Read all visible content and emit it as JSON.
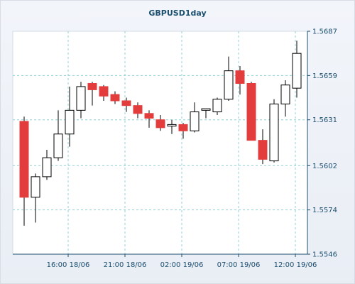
{
  "chart_data": {
    "type": "candlestick",
    "title": "GBPUSD1day",
    "xlabel": "",
    "ylabel": "",
    "ylim": [
      1.5546,
      1.5687
    ],
    "y_ticks": [
      "1.5687",
      "1.5659",
      "1.5631",
      "1.5602",
      "1.5574",
      "1.5546"
    ],
    "x_ticks": [
      {
        "label": "16:00 18/06",
        "at_candle": 4
      },
      {
        "label": "21:00 18/06",
        "at_candle": 9
      },
      {
        "label": "02:00 19/06",
        "at_candle": 14
      },
      {
        "label": "07:00 19/06",
        "at_candle": 19
      },
      {
        "label": "12:00 19/06",
        "at_candle": 24
      }
    ],
    "grid": true,
    "legend": "none",
    "colors": {
      "bull_fill": "#ffffff",
      "bear_fill": "#e23c3c",
      "wick": "#000000",
      "grid": "#8fd0d4",
      "axis_text": "#1c4e6e"
    },
    "candles": [
      {
        "open": 1.563,
        "high": 1.5633,
        "low": 1.5564,
        "close": 1.5582
      },
      {
        "open": 1.5582,
        "high": 1.5597,
        "low": 1.5566,
        "close": 1.5595
      },
      {
        "open": 1.5595,
        "high": 1.5612,
        "low": 1.5593,
        "close": 1.5607
      },
      {
        "open": 1.5607,
        "high": 1.5637,
        "low": 1.5605,
        "close": 1.5622
      },
      {
        "open": 1.5622,
        "high": 1.5652,
        "low": 1.5614,
        "close": 1.5637
      },
      {
        "open": 1.5637,
        "high": 1.5655,
        "low": 1.5632,
        "close": 1.5652
      },
      {
        "open": 1.5654,
        "high": 1.5655,
        "low": 1.564,
        "close": 1.565
      },
      {
        "open": 1.5652,
        "high": 1.5653,
        "low": 1.5643,
        "close": 1.5646
      },
      {
        "open": 1.5647,
        "high": 1.5649,
        "low": 1.5641,
        "close": 1.5643
      },
      {
        "open": 1.5643,
        "high": 1.5645,
        "low": 1.5636,
        "close": 1.564
      },
      {
        "open": 1.564,
        "high": 1.5642,
        "low": 1.5632,
        "close": 1.5635
      },
      {
        "open": 1.5635,
        "high": 1.5637,
        "low": 1.5626,
        "close": 1.5632
      },
      {
        "open": 1.5631,
        "high": 1.5634,
        "low": 1.5624,
        "close": 1.5626
      },
      {
        "open": 1.5627,
        "high": 1.5631,
        "low": 1.5622,
        "close": 1.5628
      },
      {
        "open": 1.5628,
        "high": 1.5629,
        "low": 1.5619,
        "close": 1.5624
      },
      {
        "open": 1.5624,
        "high": 1.5642,
        "low": 1.5623,
        "close": 1.5636
      },
      {
        "open": 1.5637,
        "high": 1.5638,
        "low": 1.5632,
        "close": 1.5638
      },
      {
        "open": 1.5636,
        "high": 1.5645,
        "low": 1.5634,
        "close": 1.5644
      },
      {
        "open": 1.5644,
        "high": 1.5671,
        "low": 1.5643,
        "close": 1.5662
      },
      {
        "open": 1.5662,
        "high": 1.5665,
        "low": 1.5647,
        "close": 1.5654
      },
      {
        "open": 1.5654,
        "high": 1.5655,
        "low": 1.5618,
        "close": 1.5618
      },
      {
        "open": 1.5618,
        "high": 1.5625,
        "low": 1.5603,
        "close": 1.5606
      },
      {
        "open": 1.5605,
        "high": 1.5644,
        "low": 1.5604,
        "close": 1.5641
      },
      {
        "open": 1.5641,
        "high": 1.5656,
        "low": 1.5633,
        "close": 1.5653
      },
      {
        "open": 1.5651,
        "high": 1.5681,
        "low": 1.5645,
        "close": 1.5673
      }
    ]
  }
}
